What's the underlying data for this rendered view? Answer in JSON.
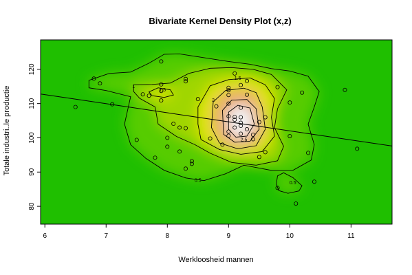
{
  "chart_data": {
    "type": "scatter",
    "title": "Bivariate Kernel Density Plot (x,z)",
    "xlabel": "Werkloosheid mannen",
    "ylabel": "Totale industri..le productie",
    "xlim": [
      5.93,
      11.67
    ],
    "ylim": [
      74.8,
      128.6
    ],
    "x_ticks": [
      6,
      7,
      8,
      9,
      10,
      11
    ],
    "y_ticks": [
      80,
      90,
      100,
      110,
      120
    ],
    "grid": false,
    "legend": "none",
    "background_colors": {
      "low": "#1fbf00",
      "mid": "#e6e600",
      "high": "#f2f2f2"
    },
    "points": [
      [
        6.5,
        109
      ],
      [
        6.8,
        117.3
      ],
      [
        6.9,
        115.9
      ],
      [
        7.1,
        109.8
      ],
      [
        7.5,
        99.4
      ],
      [
        7.6,
        112.7
      ],
      [
        7.7,
        112.3
      ],
      [
        7.8,
        94.2
      ],
      [
        7.9,
        122.3
      ],
      [
        7.9,
        115.6
      ],
      [
        7.9,
        113.7
      ],
      [
        7.9,
        110.9
      ],
      [
        8.0,
        100.0
      ],
      [
        8.0,
        97.4
      ],
      [
        8.1,
        104.1
      ],
      [
        8.2,
        103.0
      ],
      [
        8.2,
        96.0
      ],
      [
        8.3,
        117.2
      ],
      [
        8.3,
        116.5
      ],
      [
        8.3,
        102.8
      ],
      [
        8.3,
        91.0
      ],
      [
        8.4,
        93.2
      ],
      [
        8.4,
        92.4
      ],
      [
        8.5,
        111.3
      ],
      [
        8.7,
        99.8
      ],
      [
        8.8,
        109.2
      ],
      [
        8.9,
        98.0
      ],
      [
        9.0,
        114.6
      ],
      [
        9.0,
        113.9
      ],
      [
        9.0,
        112.5
      ],
      [
        9.0,
        110.0
      ],
      [
        9.0,
        106.3
      ],
      [
        9.0,
        101.8
      ],
      [
        9.0,
        100.6
      ],
      [
        9.1,
        118.8
      ],
      [
        9.1,
        106.1
      ],
      [
        9.1,
        105.3
      ],
      [
        9.1,
        103.0
      ],
      [
        9.2,
        115.4
      ],
      [
        9.2,
        108.8
      ],
      [
        9.2,
        106.0
      ],
      [
        9.2,
        104.4
      ],
      [
        9.2,
        103.5
      ],
      [
        9.2,
        101.2
      ],
      [
        9.3,
        116.6
      ],
      [
        9.3,
        112.6
      ],
      [
        9.3,
        102.5
      ],
      [
        9.4,
        100.9
      ],
      [
        9.4,
        99.6
      ],
      [
        9.5,
        104.6
      ],
      [
        9.5,
        94.4
      ],
      [
        9.6,
        106.0
      ],
      [
        9.6,
        95.8
      ],
      [
        9.8,
        114.8
      ],
      [
        9.8,
        85.4
      ],
      [
        10.0,
        110.3
      ],
      [
        10.0,
        100.5
      ],
      [
        10.1,
        80.8
      ],
      [
        10.2,
        113.2
      ],
      [
        10.3,
        95.6
      ],
      [
        10.4,
        87.2
      ],
      [
        10.9,
        114.0
      ],
      [
        11.1,
        96.8
      ]
    ],
    "regression_line": {
      "x": [
        5.93,
        11.67
      ],
      "y": [
        112.8,
        97.6
      ]
    },
    "contours": [
      {
        "level": "0.5",
        "paths": [
          [
            [
              7.4,
              112
            ],
            [
              7.3,
              104
            ],
            [
              7.4,
              98
            ],
            [
              7.65,
              94
            ],
            [
              7.95,
              90.5
            ],
            [
              8.3,
              88.3
            ],
            [
              8.6,
              87.5
            ],
            [
              8.95,
              89.5
            ],
            [
              9.25,
              92
            ],
            [
              9.7,
              90.5
            ],
            [
              10.05,
              90.5
            ],
            [
              10.35,
              93.5
            ],
            [
              10.4,
              98
            ],
            [
              10.3,
              104
            ],
            [
              10.4,
              109
            ],
            [
              10.48,
              113.5
            ],
            [
              10.3,
              118
            ],
            [
              10.0,
              119.5
            ],
            [
              9.7,
              120.2
            ],
            [
              9.35,
              121.5
            ],
            [
              9.0,
              122.3
            ],
            [
              8.6,
              123.4
            ],
            [
              8.2,
              124.5
            ],
            [
              7.95,
              124.4
            ],
            [
              7.7,
              121.8
            ],
            [
              7.4,
              119.2
            ],
            [
              7.05,
              118.8
            ],
            [
              6.72,
              116.8
            ],
            [
              6.72,
              114.6
            ],
            [
              7.0,
              113.8
            ],
            [
              7.4,
              112
            ]
          ],
          [
            [
              9.8,
              88.9
            ],
            [
              9.9,
              89.8
            ],
            [
              10.05,
              88.4
            ],
            [
              10.2,
              86.0
            ],
            [
              10.15,
              84.5
            ],
            [
              9.97,
              83.8
            ],
            [
              9.82,
              84.6
            ],
            [
              9.78,
              86.5
            ],
            [
              9.8,
              88.9
            ]
          ]
        ]
      },
      {
        "level": "1",
        "paths": [
          [
            [
              7.45,
              115.5
            ],
            [
              7.75,
              115.6
            ],
            [
              8.05,
              116.0
            ],
            [
              8.35,
              118.8
            ],
            [
              8.7,
              120.3
            ],
            [
              9.05,
              120.5
            ],
            [
              9.4,
              120.0
            ],
            [
              9.7,
              118.5
            ],
            [
              9.95,
              114.0
            ],
            [
              9.8,
              108.5
            ],
            [
              9.75,
              103.0
            ],
            [
              9.9,
              97.5
            ],
            [
              9.8,
              93.3
            ],
            [
              9.45,
              92.0
            ],
            [
              9.05,
              92.8
            ],
            [
              8.7,
              95.5
            ],
            [
              8.45,
              98.0
            ],
            [
              8.15,
              100.4
            ],
            [
              7.85,
              104.0
            ],
            [
              7.8,
              109.0
            ],
            [
              7.55,
              111.5
            ],
            [
              7.45,
              113.5
            ],
            [
              7.45,
              115.5
            ]
          ]
        ]
      },
      {
        "level": "1.5",
        "paths": [
          [
            [
              7.7,
              113.4
            ],
            [
              7.85,
              114.6
            ],
            [
              8.05,
              114.0
            ],
            [
              8.1,
              112.5
            ],
            [
              7.95,
              111.8
            ],
            [
              7.75,
              112.3
            ],
            [
              7.7,
              113.4
            ]
          ],
          [
            [
              8.5,
              109.0
            ],
            [
              8.7,
              115.2
            ],
            [
              9.0,
              117.0
            ],
            [
              9.35,
              117.5
            ],
            [
              9.6,
              115.5
            ],
            [
              9.75,
              111.5
            ],
            [
              9.7,
              106.0
            ],
            [
              9.75,
              100.5
            ],
            [
              9.55,
              96.0
            ],
            [
              9.2,
              95.2
            ],
            [
              8.85,
              96.6
            ],
            [
              8.55,
              99.5
            ],
            [
              8.5,
              104.0
            ],
            [
              8.5,
              109.0
            ]
          ]
        ]
      },
      {
        "level": "2",
        "paths": [
          [
            [
              8.75,
              110.5
            ],
            [
              8.95,
              113.8
            ],
            [
              9.25,
              114.5
            ],
            [
              9.45,
              113.2
            ],
            [
              9.55,
              109.0
            ],
            [
              9.6,
              102.5
            ],
            [
              9.45,
              97.7
            ],
            [
              9.15,
              96.8
            ],
            [
              8.85,
              98.5
            ],
            [
              8.72,
              103.0
            ],
            [
              8.75,
              110.5
            ]
          ]
        ]
      },
      {
        "level": "2.5",
        "paths": [
          [
            [
              8.9,
              108.0
            ],
            [
              9.05,
              111.0
            ],
            [
              9.3,
              111.2
            ],
            [
              9.45,
              108.5
            ],
            [
              9.5,
              102.5
            ],
            [
              9.35,
              99.0
            ],
            [
              9.1,
              98.7
            ],
            [
              8.92,
              101.0
            ],
            [
              8.9,
              108.0
            ]
          ]
        ]
      },
      {
        "level": "3",
        "paths": [
          [
            [
              9.0,
              107.5
            ],
            [
              9.15,
              109.5
            ],
            [
              9.35,
              108.7
            ],
            [
              9.42,
              104.0
            ],
            [
              9.3,
              100.5
            ],
            [
              9.12,
              100.2
            ],
            [
              9.0,
              102.5
            ],
            [
              9.0,
              107.5
            ]
          ]
        ]
      }
    ],
    "contour_labels": [
      {
        "text": "0.5",
        "x": 8.5,
        "y": 87.6
      },
      {
        "text": "0.5",
        "x": 10.05,
        "y": 86.9
      },
      {
        "text": "1",
        "x": 7.45,
        "y": 115.0
      },
      {
        "text": "1.5",
        "x": 7.92,
        "y": 114.0
      },
      {
        "text": "1.5",
        "x": 9.15,
        "y": 117.5
      },
      {
        "text": "2",
        "x": 8.75,
        "y": 111.0
      },
      {
        "text": "2.5",
        "x": 9.25,
        "y": 99.5
      }
    ]
  }
}
